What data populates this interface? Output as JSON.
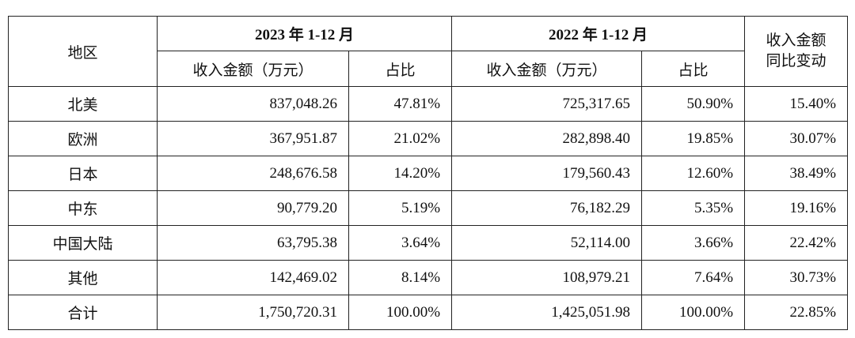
{
  "table": {
    "header": {
      "region": "地区",
      "period_2023": "2023 年 1-12 月",
      "period_2022": "2022 年 1-12 月",
      "revenue_2023": "收入金额（万元）",
      "share_2023": "占比",
      "revenue_2022": "收入金额（万元）",
      "share_2022": "占比",
      "change": [
        "收入金额",
        "同比变动"
      ]
    },
    "rows": [
      [
        "北美",
        "837,048.26",
        "47.81%",
        "725,317.65",
        "50.90%",
        "15.40%"
      ],
      [
        "欧洲",
        "367,951.87",
        "21.02%",
        "282,898.40",
        "19.85%",
        "30.07%"
      ],
      [
        "日本",
        "248,676.58",
        "14.20%",
        "179,560.43",
        "12.60%",
        "38.49%"
      ],
      [
        "中东",
        "90,779.20",
        "5.19%",
        "76,182.29",
        "5.35%",
        "19.16%"
      ],
      [
        "中国大陆",
        "63,795.38",
        "3.64%",
        "52,114.00",
        "3.66%",
        "22.42%"
      ],
      [
        "其他",
        "142,469.02",
        "8.14%",
        "108,979.21",
        "7.64%",
        "30.73%"
      ],
      [
        "合计",
        "1,750,720.31",
        "100.00%",
        "1,425,051.98",
        "100.00%",
        "22.85%"
      ]
    ]
  }
}
